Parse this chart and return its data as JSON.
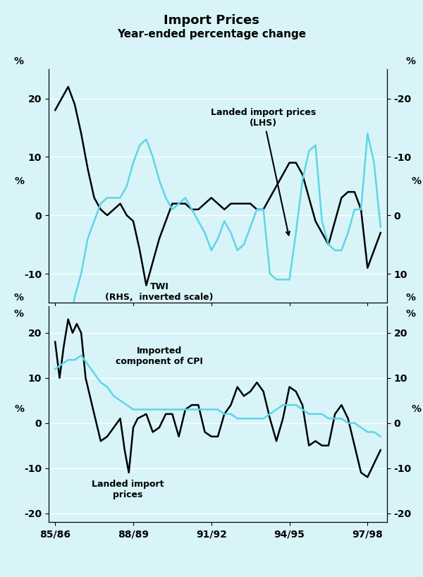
{
  "title": "Import Prices",
  "subtitle": "Year-ended percentage change",
  "bg_color": "#d8f4f8",
  "line_color_black": "#000000",
  "line_color_cyan": "#5cd6e8",
  "xtick_labels": [
    "85/86",
    "88/89",
    "91/92",
    "94/95",
    "97/98"
  ],
  "top_panel_label1": "Landed import prices\n(LHS)",
  "top_panel_label2": "TWI\n(RHS,  inverted scale)",
  "bot_panel_label1": "Imported\ncomponent of CPI",
  "bot_panel_label2": "Landed import\nprices",
  "top_lhs_x": [
    1985.5,
    1985.75,
    1986.0,
    1986.25,
    1986.5,
    1986.75,
    1987.0,
    1987.25,
    1987.5,
    1987.75,
    1988.0,
    1988.25,
    1988.5,
    1988.75,
    1989.0,
    1989.25,
    1989.5,
    1989.75,
    1990.0,
    1990.25,
    1990.5,
    1990.75,
    1991.0,
    1991.25,
    1991.5,
    1991.75,
    1992.0,
    1992.25,
    1992.5,
    1992.75,
    1993.0,
    1993.25,
    1993.5,
    1993.75,
    1994.0,
    1994.25,
    1994.5,
    1994.75,
    1995.0,
    1995.25,
    1995.5,
    1995.75,
    1996.0,
    1996.25,
    1996.5,
    1996.75,
    1997.0,
    1997.25,
    1997.5,
    1997.75,
    1998.0
  ],
  "top_lhs_y": [
    18,
    20,
    22,
    19,
    14,
    8,
    3,
    1,
    0,
    1,
    2,
    0,
    -1,
    -6,
    -12,
    -8,
    -4,
    -1,
    2,
    2,
    2,
    1,
    1,
    2,
    3,
    2,
    1,
    2,
    2,
    2,
    2,
    1,
    1,
    3,
    5,
    7,
    9,
    9,
    7,
    3,
    -1,
    -3,
    -5,
    -1,
    3,
    4,
    4,
    1,
    -9,
    -6,
    -3
  ],
  "top_rhs_x": [
    1985.5,
    1985.75,
    1986.0,
    1986.25,
    1986.5,
    1986.75,
    1987.0,
    1987.25,
    1987.5,
    1987.75,
    1988.0,
    1988.25,
    1988.5,
    1988.75,
    1989.0,
    1989.25,
    1989.5,
    1989.75,
    1990.0,
    1990.25,
    1990.5,
    1990.75,
    1991.0,
    1991.25,
    1991.5,
    1991.75,
    1992.0,
    1992.25,
    1992.5,
    1992.75,
    1993.0,
    1993.25,
    1993.5,
    1993.75,
    1994.0,
    1994.25,
    1994.5,
    1994.75,
    1995.0,
    1995.25,
    1995.5,
    1995.75,
    1996.0,
    1996.25,
    1996.5,
    1996.75,
    1997.0,
    1997.25,
    1997.5,
    1997.75,
    1998.0
  ],
  "top_rhs_y": [
    16,
    22,
    20,
    14,
    10,
    4,
    1,
    -2,
    -3,
    -3,
    -3,
    -5,
    -9,
    -12,
    -13,
    -10,
    -6,
    -3,
    -1,
    -2,
    -3,
    -1,
    1,
    3,
    6,
    4,
    1,
    3,
    6,
    5,
    2,
    -1,
    -1,
    10,
    11,
    11,
    11,
    3,
    -6,
    -11,
    -12,
    1,
    5,
    6,
    6,
    3,
    -1,
    -1,
    -14,
    -9,
    2
  ],
  "bot_black_x": [
    1985.5,
    1985.67,
    1985.83,
    1986.0,
    1986.17,
    1986.33,
    1986.5,
    1986.67,
    1987.0,
    1987.25,
    1987.5,
    1987.75,
    1988.0,
    1988.17,
    1988.33,
    1988.5,
    1988.67,
    1989.0,
    1989.25,
    1989.5,
    1989.75,
    1990.0,
    1990.25,
    1990.5,
    1990.75,
    1991.0,
    1991.25,
    1991.5,
    1991.75,
    1992.0,
    1992.25,
    1992.5,
    1992.75,
    1993.0,
    1993.25,
    1993.5,
    1993.75,
    1994.0,
    1994.25,
    1994.5,
    1994.75,
    1995.0,
    1995.25,
    1995.5,
    1995.75,
    1996.0,
    1996.25,
    1996.5,
    1996.75,
    1997.0,
    1997.25,
    1997.5,
    1997.75,
    1998.0
  ],
  "bot_black_y": [
    18,
    10,
    17,
    23,
    20,
    22,
    20,
    10,
    2,
    -4,
    -3,
    -1,
    1,
    -6,
    -11,
    -1,
    1,
    2,
    -2,
    -1,
    2,
    2,
    -3,
    3,
    4,
    4,
    -2,
    -3,
    -3,
    2,
    4,
    8,
    6,
    7,
    9,
    7,
    1,
    -4,
    1,
    8,
    7,
    4,
    -5,
    -4,
    -5,
    -5,
    2,
    4,
    1,
    -5,
    -11,
    -12,
    -9,
    -6
  ],
  "bot_cyan_x": [
    1985.5,
    1985.75,
    1986.0,
    1986.25,
    1986.5,
    1986.75,
    1987.0,
    1987.25,
    1987.5,
    1987.75,
    1988.0,
    1988.25,
    1988.5,
    1988.75,
    1989.0,
    1989.25,
    1989.5,
    1989.75,
    1990.0,
    1990.25,
    1990.5,
    1990.75,
    1991.0,
    1991.25,
    1991.5,
    1991.75,
    1992.0,
    1992.25,
    1992.5,
    1992.75,
    1993.0,
    1993.25,
    1993.5,
    1993.75,
    1994.0,
    1994.25,
    1994.5,
    1994.75,
    1995.0,
    1995.25,
    1995.5,
    1995.75,
    1996.0,
    1996.25,
    1996.5,
    1996.75,
    1997.0,
    1997.25,
    1997.5,
    1997.75,
    1998.0
  ],
  "bot_cyan_y": [
    12,
    13,
    14,
    14,
    15,
    13,
    11,
    9,
    8,
    6,
    5,
    4,
    3,
    3,
    3,
    3,
    3,
    3,
    3,
    3,
    3,
    3,
    3,
    3,
    3,
    3,
    2,
    2,
    1,
    1,
    1,
    1,
    1,
    2,
    3,
    4,
    4,
    4,
    3,
    2,
    2,
    2,
    1,
    1,
    1,
    0,
    0,
    -1,
    -2,
    -2,
    -3
  ]
}
